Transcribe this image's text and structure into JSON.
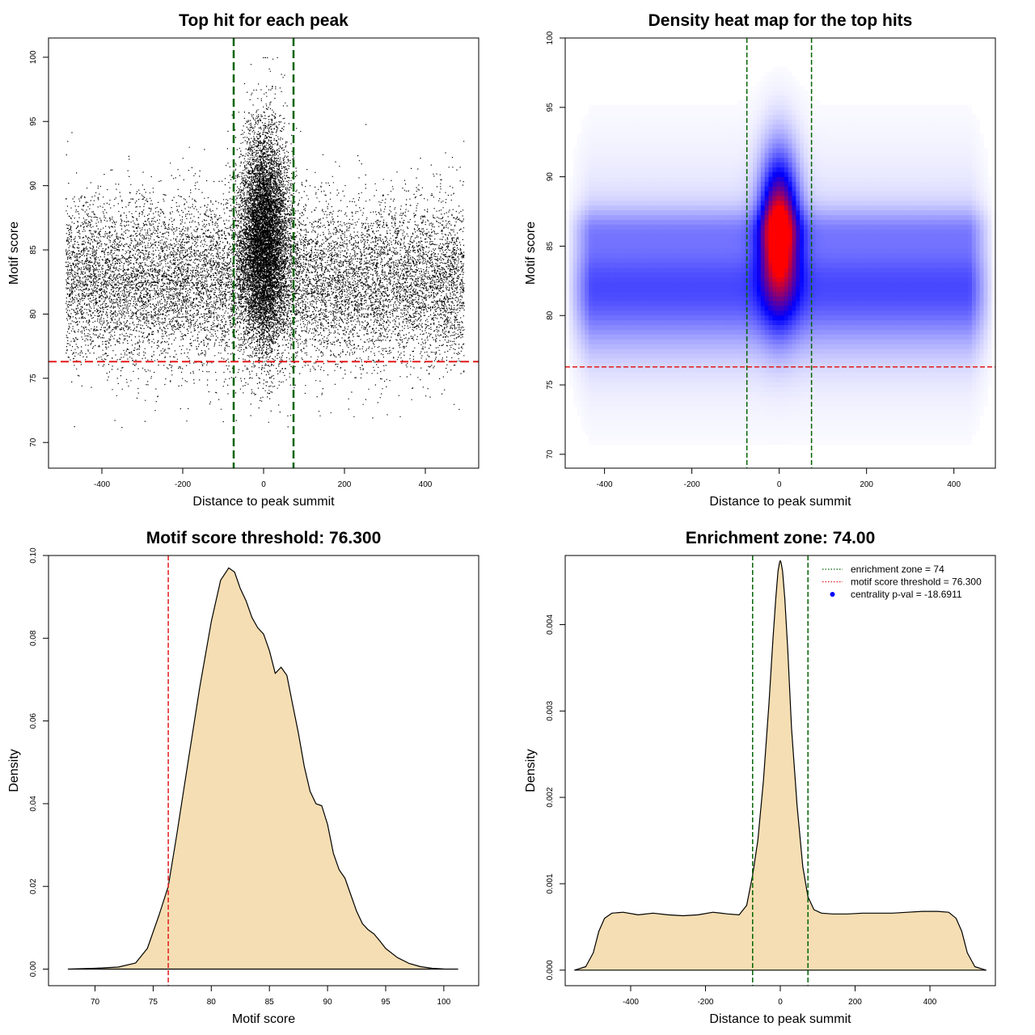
{
  "chart_data": [
    {
      "id": "scatter",
      "type": "scatter",
      "title": "Top hit for each peak",
      "xlabel": "Distance to peak summit",
      "ylabel": "Motif score",
      "xlim": [
        -532,
        532
      ],
      "ylim": [
        68,
        101.5
      ],
      "xticks": [
        -400,
        -200,
        0,
        200,
        400
      ],
      "yticks": [
        70,
        75,
        80,
        85,
        90,
        95,
        100
      ],
      "background_band": {
        "x_range": [
          -490,
          495
        ],
        "y_center": 82.5,
        "y_sd": 3.2
      },
      "central_cluster": {
        "x_center": 0,
        "x_sd": 30,
        "y_center": 86,
        "y_sd": 4.2
      },
      "point_color": "#000000",
      "vlines": [
        -74,
        74
      ],
      "vline_color": "#006400",
      "hline": 76.3,
      "hline_color": "#e41a1c"
    },
    {
      "id": "heatmap",
      "type": "heatmap",
      "title": "Density heat map for the top hits",
      "xlabel": "Distance to peak summit",
      "ylabel": "Motif score",
      "xlim": [
        -490,
        495
      ],
      "ylim": [
        69,
        100
      ],
      "xticks": [
        -400,
        -200,
        0,
        200,
        400
      ],
      "yticks": [
        70,
        75,
        80,
        85,
        90,
        95,
        100
      ],
      "color_scale": [
        "#ffffff",
        "#0000ff",
        "#ff0000"
      ],
      "vlines": [
        -74,
        74
      ],
      "vline_color": "#006400",
      "hline": 76.3,
      "hline_color": "#e41a1c"
    },
    {
      "id": "scoredensity",
      "type": "area",
      "title": "Motif score threshold: 76.300",
      "xlabel": "Motif score",
      "ylabel": "Density",
      "xlim": [
        66,
        103
      ],
      "ylim": [
        -0.004,
        0.1
      ],
      "xticks": [
        70,
        75,
        80,
        85,
        90,
        95,
        100
      ],
      "yticks": [
        0.0,
        0.02,
        0.04,
        0.06,
        0.08,
        0.1
      ],
      "ytick_labels": [
        "0.00",
        "0.02",
        "0.04",
        "0.06",
        "0.08",
        "0.10"
      ],
      "x": [
        67.7,
        70,
        72,
        73.5,
        74.5,
        75.5,
        76.3,
        77,
        78,
        79,
        80,
        80.8,
        81.5,
        82,
        82.5,
        83,
        83.5,
        84,
        84.5,
        85,
        85.5,
        86,
        86.5,
        87,
        87.5,
        88,
        88.5,
        89,
        89.5,
        90,
        90.5,
        91,
        91.5,
        92,
        92.5,
        93,
        93.5,
        94,
        94.5,
        95,
        96,
        97,
        98,
        99,
        100,
        101.2
      ],
      "y": [
        0.0,
        0.0002,
        0.0005,
        0.0015,
        0.005,
        0.013,
        0.02,
        0.032,
        0.05,
        0.068,
        0.084,
        0.094,
        0.097,
        0.096,
        0.092,
        0.089,
        0.085,
        0.0825,
        0.081,
        0.077,
        0.0715,
        0.073,
        0.071,
        0.064,
        0.057,
        0.049,
        0.043,
        0.04,
        0.0395,
        0.035,
        0.028,
        0.024,
        0.022,
        0.018,
        0.014,
        0.011,
        0.0095,
        0.0085,
        0.0068,
        0.005,
        0.0028,
        0.0014,
        0.0006,
        0.0002,
        5e-05,
        0.0
      ],
      "fill_color": "#f5deb3",
      "vline": 76.3,
      "vline_color": "#e41a1c"
    },
    {
      "id": "enrichment",
      "type": "area",
      "title": "Enrichment zone: 74.00",
      "xlabel": "Distance to peak summit",
      "ylabel": "Density",
      "xlim": [
        -575,
        575
      ],
      "ylim": [
        -0.00018,
        0.0048
      ],
      "xticks": [
        -400,
        -200,
        0,
        200,
        400
      ],
      "yticks": [
        0.0,
        0.001,
        0.002,
        0.003,
        0.004
      ],
      "ytick_labels": [
        "0.000",
        "0.001",
        "0.002",
        "0.003",
        "0.004"
      ],
      "x": [
        -550,
        -520,
        -500,
        -485,
        -470,
        -450,
        -420,
        -380,
        -340,
        -300,
        -260,
        -220,
        -180,
        -140,
        -110,
        -90,
        -74,
        -60,
        -45,
        -30,
        -20,
        -12,
        -6,
        -2,
        0,
        2,
        6,
        12,
        20,
        30,
        45,
        60,
        74,
        90,
        110,
        140,
        180,
        220,
        260,
        300,
        340,
        380,
        420,
        450,
        470,
        485,
        500,
        520,
        550
      ],
      "y": [
        0.0,
        4e-05,
        0.0002,
        0.00045,
        0.0006,
        0.00066,
        0.00067,
        0.00064,
        0.00066,
        0.00064,
        0.00063,
        0.00064,
        0.00067,
        0.00065,
        0.00064,
        0.00075,
        0.0011,
        0.0015,
        0.0022,
        0.0031,
        0.0038,
        0.0043,
        0.00462,
        0.00472,
        0.00474,
        0.00472,
        0.00462,
        0.0043,
        0.0037,
        0.0028,
        0.0019,
        0.0012,
        0.00085,
        0.0007,
        0.00066,
        0.00065,
        0.00065,
        0.00066,
        0.00066,
        0.00066,
        0.00067,
        0.00068,
        0.00068,
        0.00067,
        0.0006,
        0.00045,
        0.0002,
        4e-05,
        0.0
      ],
      "fill_color": "#f5deb3",
      "vlines": [
        -74,
        74
      ],
      "vline_color": "#006400",
      "legend": {
        "placement": "top-right",
        "entries": [
          {
            "label": "enrichment zone = 74",
            "style": "dotted",
            "color": "#006400"
          },
          {
            "label": "motif score threshold = 76.300",
            "style": "dotted",
            "color": "#e41a1c"
          },
          {
            "label": "centrality p-val = -18.6911",
            "style": "point",
            "color": "#0000ff"
          }
        ]
      }
    }
  ]
}
